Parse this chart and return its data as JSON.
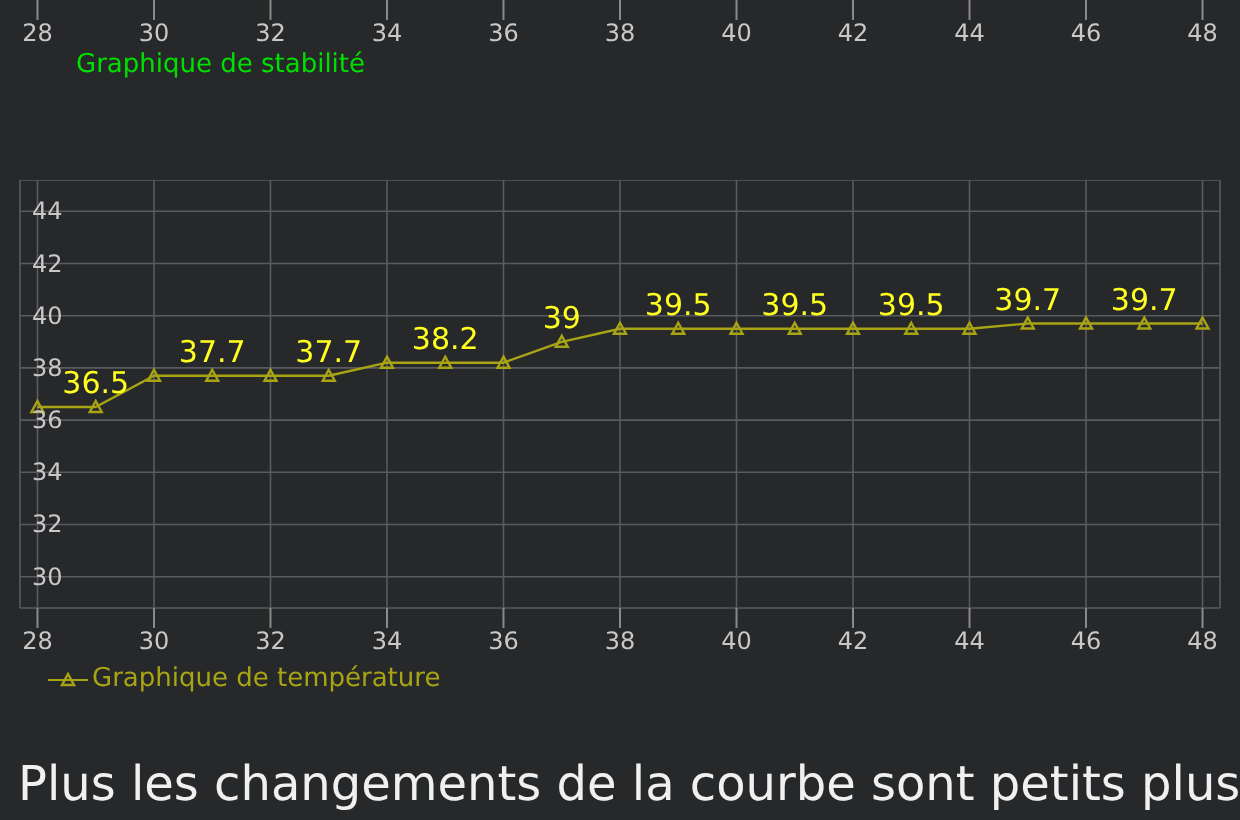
{
  "chart_data": {
    "type": "line",
    "xlim": [
      27.7,
      48.3
    ],
    "xticks": [
      28,
      30,
      32,
      34,
      36,
      38,
      40,
      42,
      44,
      46,
      48
    ],
    "x2lim": [
      27.7,
      48.3
    ],
    "x2ticks": [
      28,
      30,
      32,
      34,
      36,
      38,
      40,
      42,
      44,
      46,
      48
    ],
    "ylim": [
      28.8,
      45.2
    ],
    "yticks": [
      30,
      32,
      34,
      36,
      38,
      40,
      42,
      44
    ],
    "grid": true,
    "legend": "bottom left",
    "marker": "triangle",
    "x": [
      28,
      29,
      30,
      31,
      32,
      33,
      34,
      35,
      36,
      37,
      38,
      39,
      40,
      41,
      42,
      43,
      44,
      45,
      46,
      47,
      48
    ],
    "series": [
      {
        "name": "Graphique de température",
        "color": "#a8a414",
        "values": [
          36.5,
          36.5,
          37.7,
          37.7,
          37.7,
          37.7,
          38.2,
          38.2,
          38.2,
          39,
          39.5,
          39.5,
          39.5,
          39.5,
          39.5,
          39.5,
          39.5,
          39.7,
          39.7,
          39.7,
          39.7
        ],
        "value_labels": [
          null,
          "36.5",
          null,
          "37.7",
          null,
          "37.7",
          null,
          "38.2",
          null,
          "39",
          null,
          "39.5",
          null,
          "39.5",
          null,
          "39.5",
          null,
          "39.7",
          null,
          "39.7",
          null
        ]
      }
    ],
    "annotations": [
      "Graphique de stabilité",
      "Plus les changements de la courbe sont petits plus"
    ]
  }
}
